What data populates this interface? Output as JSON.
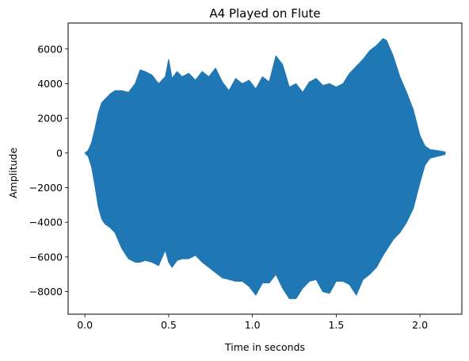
{
  "chart_data": {
    "type": "area",
    "title": "A4 Played on Flute",
    "xlabel": "Time in seconds",
    "ylabel": "Amplitude",
    "xlim": [
      -0.1,
      2.25
    ],
    "ylim": [
      -9300,
      7500
    ],
    "xticks": [
      0.0,
      0.5,
      1.0,
      1.5,
      2.0
    ],
    "xtick_labels": [
      "0.0",
      "0.5",
      "1.0",
      "1.5",
      "2.0"
    ],
    "yticks": [
      -8000,
      -6000,
      -4000,
      -2000,
      0,
      2000,
      4000,
      6000
    ],
    "ytick_labels": [
      "−8000",
      "−6000",
      "−4000",
      "−2000",
      "0",
      "2000",
      "4000",
      "6000"
    ],
    "grid": false,
    "color": "#1f77b4",
    "series": [
      {
        "x": [
          0.0,
          0.02,
          0.04,
          0.06,
          0.08,
          0.1,
          0.12,
          0.15,
          0.18,
          0.22,
          0.26,
          0.3,
          0.33,
          0.36,
          0.4,
          0.44,
          0.48,
          0.5,
          0.52,
          0.55,
          0.58,
          0.62,
          0.66,
          0.7,
          0.74,
          0.78,
          0.82,
          0.86,
          0.9,
          0.94,
          0.98,
          1.02,
          1.06,
          1.1,
          1.14,
          1.18,
          1.22,
          1.26,
          1.3,
          1.34,
          1.38,
          1.42,
          1.46,
          1.5,
          1.54,
          1.58,
          1.62,
          1.66,
          1.7,
          1.74,
          1.78,
          1.8,
          1.84,
          1.88,
          1.92,
          1.96,
          2.0,
          2.03,
          2.06,
          2.1,
          2.15
        ],
        "y_upper": [
          0,
          150,
          600,
          1400,
          2300,
          2900,
          3100,
          3400,
          3600,
          3600,
          3500,
          4000,
          4800,
          4700,
          4500,
          4000,
          4400,
          5400,
          4300,
          4700,
          4400,
          4600,
          4200,
          4700,
          4400,
          4900,
          4100,
          3600,
          4300,
          4000,
          4200,
          3700,
          4400,
          4100,
          5600,
          5100,
          3800,
          4000,
          3500,
          4100,
          4300,
          3900,
          4000,
          3800,
          4000,
          4600,
          5000,
          5400,
          5900,
          6200,
          6600,
          6500,
          5600,
          4400,
          3500,
          2500,
          1000,
          400,
          200,
          150,
          60
        ],
        "y_lower": [
          0,
          -200,
          -800,
          -1900,
          -3100,
          -3800,
          -4100,
          -4300,
          -4600,
          -5500,
          -6100,
          -6300,
          -6300,
          -6200,
          -6300,
          -6500,
          -5600,
          -6300,
          -6600,
          -6200,
          -6100,
          -6100,
          -5900,
          -6300,
          -6600,
          -6900,
          -7200,
          -7300,
          -7400,
          -7400,
          -7700,
          -8200,
          -7500,
          -7500,
          -7000,
          -7800,
          -8400,
          -8400,
          -7800,
          -7400,
          -7300,
          -8000,
          -8100,
          -7400,
          -7400,
          -7600,
          -8200,
          -7300,
          -7000,
          -6600,
          -5900,
          -5600,
          -5000,
          -4600,
          -4000,
          -3200,
          -1700,
          -700,
          -300,
          -200,
          -80
        ]
      }
    ]
  }
}
